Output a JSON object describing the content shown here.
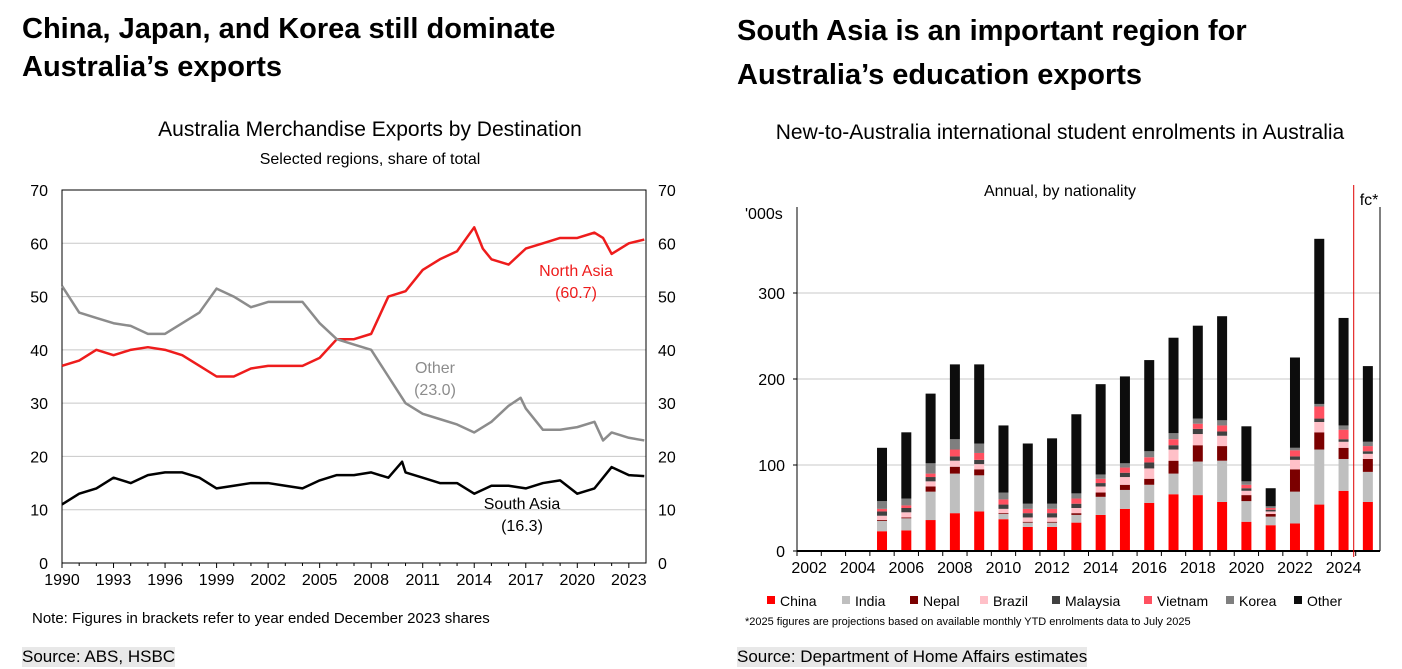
{
  "left": {
    "headline_1": "China, Japan, and Korea still dominate",
    "headline_2": "Australia’s exports",
    "note": "Note: Figures in brackets refer to year ended December 2023 shares",
    "source": "Source: ABS, HSBC"
  },
  "right": {
    "headline_1": "South Asia is an important region for",
    "headline_2": "Australia’s education exports",
    "footnote": "*2025 figures are projections based on available monthly YTD enrolments data to July 2025",
    "source": "Source: Department of Home Affairs estimates"
  },
  "chart_data": [
    {
      "type": "line",
      "title": "Australia Merchandise Exports by Destination",
      "subtitle": "Selected regions, share of total",
      "xlabel": "",
      "ylabel": "",
      "ylim": [
        0,
        70
      ],
      "xlim": [
        1990,
        2024
      ],
      "yticks": [
        0,
        10,
        20,
        30,
        40,
        50,
        60,
        70
      ],
      "xticks": [
        1990,
        1993,
        1996,
        1999,
        2002,
        2005,
        2008,
        2011,
        2014,
        2017,
        2020,
        2023
      ],
      "grid": true,
      "series": [
        {
          "name": "North Asia",
          "label": "North Asia",
          "value_label": "(60.7)",
          "color": "#ee1c1c",
          "x": [
            1990,
            1991,
            1992,
            1993,
            1994,
            1995,
            1996,
            1997,
            1998,
            1999,
            2000,
            2001,
            2002,
            2003,
            2004,
            2005,
            2006,
            2007,
            2008,
            2009,
            2010,
            2011,
            2012,
            2013,
            2014,
            2014.5,
            2015,
            2016,
            2017,
            2018,
            2019,
            2020,
            2021,
            2021.5,
            2022,
            2023,
            2023.9
          ],
          "y": [
            37,
            38,
            40,
            39,
            40,
            40.5,
            40,
            39,
            37,
            35,
            35,
            36.5,
            37,
            37,
            37,
            38.5,
            42,
            42,
            43,
            50,
            51,
            55,
            57,
            58.5,
            63,
            59,
            57,
            56,
            59,
            60,
            61,
            61,
            62,
            61,
            58,
            60,
            60.7
          ]
        },
        {
          "name": "Other",
          "label": "Other",
          "value_label": "(23.0)",
          "color": "#8c8c8c",
          "x": [
            1990,
            1991,
            1992,
            1993,
            1994,
            1995,
            1996,
            1997,
            1998,
            1999,
            2000,
            2001,
            2002,
            2003,
            2004,
            2005,
            2006,
            2007,
            2008,
            2009,
            2010,
            2011,
            2012,
            2013,
            2014,
            2015,
            2016,
            2016.7,
            2017,
            2018,
            2019,
            2020,
            2021,
            2021.5,
            2022,
            2023,
            2023.9
          ],
          "y": [
            52,
            47,
            46,
            45,
            44.5,
            43,
            43,
            45,
            47,
            51.5,
            50,
            48,
            49,
            49,
            49,
            45,
            42,
            41,
            40,
            35,
            30,
            28,
            27,
            26,
            24.5,
            26.5,
            29.5,
            31,
            29,
            25,
            25,
            25.5,
            26.5,
            23,
            24.5,
            23.5,
            23
          ]
        },
        {
          "name": "South Asia",
          "label": "South Asia",
          "value_label": "(16.3)",
          "color": "#000000",
          "x": [
            1990,
            1991,
            1992,
            1993,
            1994,
            1995,
            1996,
            1997,
            1998,
            1999,
            2000,
            2001,
            2002,
            2003,
            2004,
            2005,
            2006,
            2007,
            2008,
            2009,
            2009.8,
            2010,
            2011,
            2012,
            2013,
            2014,
            2015,
            2016,
            2017,
            2018,
            2019,
            2020,
            2021,
            2022,
            2023,
            2023.9
          ],
          "y": [
            11,
            13,
            14,
            16,
            15,
            16.5,
            17,
            17,
            16,
            14,
            14.5,
            15,
            15,
            14.5,
            14,
            15.5,
            16.5,
            16.5,
            17,
            16,
            19,
            17,
            16,
            15,
            15,
            13,
            14.5,
            14.5,
            14,
            15,
            15.5,
            13,
            14,
            18,
            16.5,
            16.3
          ]
        }
      ]
    },
    {
      "type": "bar",
      "stacked": true,
      "title": "New-to-Australia international student enrolments in Australia",
      "subtitle": "Annual, by nationality",
      "ylabel": "'000s",
      "ylim": [
        0,
        400
      ],
      "yticks": [
        0,
        100,
        200,
        300
      ],
      "grid": true,
      "forecast_marker": "fc*",
      "categories": [
        2002,
        2003,
        2004,
        2005,
        2006,
        2007,
        2008,
        2009,
        2010,
        2011,
        2012,
        2013,
        2014,
        2015,
        2016,
        2017,
        2018,
        2019,
        2020,
        2021,
        2022,
        2023,
        2024,
        2025
      ],
      "xtick_labels": [
        "2002",
        "2004",
        "2006",
        "2008",
        "2010",
        "2012",
        "2014",
        "2016",
        "2018",
        "2020",
        "2022",
        "2024"
      ],
      "series": [
        {
          "name": "China",
          "color": "#ff0000",
          "values": [
            0,
            0,
            0,
            23,
            24,
            36,
            44,
            46,
            37,
            28,
            28,
            33,
            42,
            49,
            56,
            66,
            65,
            57,
            34,
            30,
            32,
            54,
            70,
            57
          ]
        },
        {
          "name": "India",
          "color": "#bfbfbf",
          "values": [
            0,
            0,
            0,
            12,
            14,
            33,
            46,
            42,
            6,
            5,
            5,
            9,
            21,
            22,
            21,
            24,
            39,
            48,
            24,
            10,
            37,
            64,
            37,
            35
          ]
        },
        {
          "name": "Nepal",
          "color": "#7b0000",
          "values": [
            0,
            0,
            0,
            1,
            1,
            6,
            8,
            7,
            1,
            1,
            1,
            2,
            5,
            6,
            7,
            15,
            19,
            17,
            7,
            3,
            26,
            20,
            13,
            15
          ]
        },
        {
          "name": "Brazil",
          "color": "#ffc0c8",
          "values": [
            0,
            0,
            0,
            5,
            6,
            6,
            7,
            6,
            5,
            5,
            5,
            6,
            7,
            9,
            12,
            13,
            13,
            12,
            5,
            3,
            11,
            12,
            7,
            6
          ]
        },
        {
          "name": "Malaysia",
          "color": "#404040",
          "values": [
            0,
            0,
            0,
            5,
            5,
            5,
            5,
            5,
            5,
            5,
            5,
            5,
            4,
            5,
            7,
            5,
            6,
            5,
            3,
            2,
            4,
            4,
            3,
            3
          ]
        },
        {
          "name": "Vietnam",
          "color": "#ff5060",
          "values": [
            0,
            0,
            0,
            3,
            3,
            4,
            8,
            8,
            6,
            5,
            5,
            6,
            5,
            6,
            6,
            7,
            6,
            7,
            4,
            2,
            7,
            14,
            11,
            6
          ]
        },
        {
          "name": "Korea",
          "color": "#7f7f7f",
          "values": [
            0,
            0,
            0,
            9,
            8,
            12,
            12,
            11,
            8,
            6,
            6,
            6,
            5,
            5,
            7,
            7,
            6,
            6,
            4,
            2,
            3,
            3,
            5,
            5
          ]
        },
        {
          "name": "Other",
          "color": "#0d0d0d",
          "values": [
            0,
            0,
            0,
            62,
            77,
            81,
            87,
            92,
            78,
            70,
            76,
            92,
            105,
            101,
            106,
            111,
            108,
            121,
            64,
            21,
            105,
            192,
            125,
            88
          ]
        }
      ]
    }
  ]
}
